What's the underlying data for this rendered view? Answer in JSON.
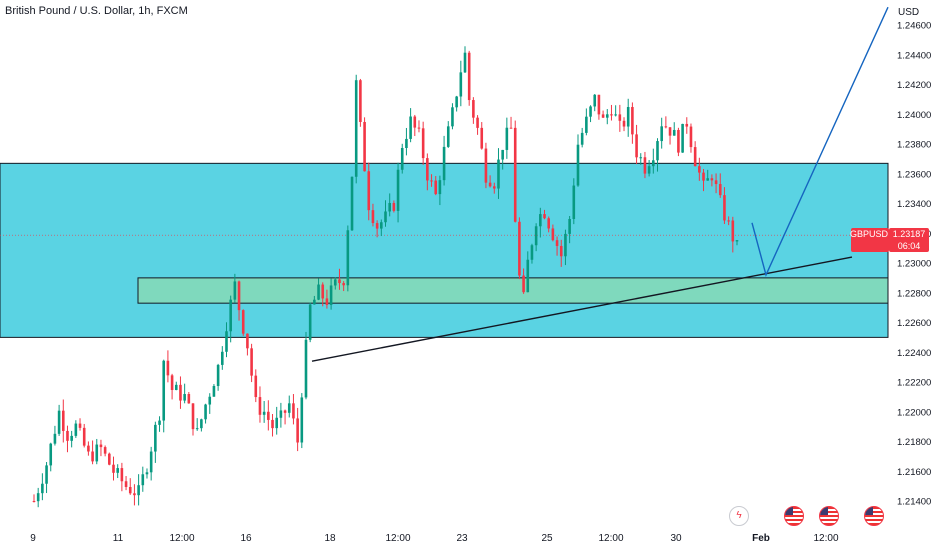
{
  "header": {
    "title": "British Pound / U.S. Dollar, 1h, FXCM",
    "axis_unit": "USD"
  },
  "price_tag": {
    "symbol": "GBPUSD",
    "price": "1.23187",
    "countdown": "06:04",
    "color": "#f23645"
  },
  "events": [
    {
      "icon": "lightning-icon",
      "kind": "economic-event"
    },
    {
      "icon": "us-flag-icon",
      "kind": "us-event"
    },
    {
      "icon": "us-flag-icon",
      "kind": "us-event"
    },
    {
      "icon": "us-flag-icon",
      "kind": "us-event"
    }
  ],
  "chart_data": {
    "type": "candlestick",
    "title": "British Pound / U.S. Dollar, 1h, FXCM",
    "y_range": [
      1.213,
      1.248
    ],
    "y_ticks": [
      "1.24600",
      "1.24400",
      "1.24200",
      "1.24000",
      "1.23800",
      "1.23600",
      "1.23400",
      "1.23200",
      "1.23000",
      "1.22800",
      "1.22600",
      "1.22400",
      "1.22200",
      "1.22000",
      "1.21800",
      "1.21600",
      "1.21400"
    ],
    "x_ticks": [
      "9",
      "11",
      "12:00",
      "16",
      "18",
      "12:00",
      "23",
      "25",
      "12:00",
      "30",
      "Feb",
      "12:00"
    ],
    "colors": {
      "up": "#089981",
      "down": "#f23645",
      "zone": "#00bcd4",
      "inner_zone": "#81c784",
      "line": "#131722",
      "projection": "#1565c0"
    },
    "zones": [
      {
        "name": "supply-demand-zone",
        "top": 1.2367,
        "bottom": 1.225
      },
      {
        "name": "support-zone",
        "top": 1.229,
        "bottom": 1.2273
      }
    ],
    "trendline": {
      "from": [
        "Jan 17",
        1.2234
      ],
      "to": [
        "Feb 1",
        1.2304
      ]
    },
    "projection": [
      [
        "Jan 31",
        1.2327
      ],
      [
        "Feb 1",
        1.2292
      ],
      [
        "Feb 2",
        1.2472
      ]
    ],
    "last_price": 1.23187,
    "anchors": [
      {
        "i": 0,
        "v": 1.214
      },
      {
        "i": 3,
        "v": 1.2165
      },
      {
        "i": 6,
        "v": 1.22
      },
      {
        "i": 8,
        "v": 1.2185
      },
      {
        "i": 10,
        "v": 1.219
      },
      {
        "i": 13,
        "v": 1.217
      },
      {
        "i": 16,
        "v": 1.2175
      },
      {
        "i": 19,
        "v": 1.216
      },
      {
        "i": 22,
        "v": 1.215
      },
      {
        "i": 25,
        "v": 1.2145
      },
      {
        "i": 27,
        "v": 1.2165
      },
      {
        "i": 30,
        "v": 1.22
      },
      {
        "i": 31,
        "v": 1.2235
      },
      {
        "i": 33,
        "v": 1.2215
      },
      {
        "i": 36,
        "v": 1.221
      },
      {
        "i": 39,
        "v": 1.2185
      },
      {
        "i": 41,
        "v": 1.2205
      },
      {
        "i": 44,
        "v": 1.223
      },
      {
        "i": 46,
        "v": 1.226
      },
      {
        "i": 48,
        "v": 1.2285
      },
      {
        "i": 49,
        "v": 1.227
      },
      {
        "i": 51,
        "v": 1.2245
      },
      {
        "i": 53,
        "v": 1.2205
      },
      {
        "i": 55,
        "v": 1.22
      },
      {
        "i": 57,
        "v": 1.219
      },
      {
        "i": 59,
        "v": 1.2195
      },
      {
        "i": 61,
        "v": 1.2205
      },
      {
        "i": 63,
        "v": 1.218
      },
      {
        "i": 64,
        "v": 1.2215
      },
      {
        "i": 66,
        "v": 1.227
      },
      {
        "i": 68,
        "v": 1.228
      },
      {
        "i": 70,
        "v": 1.2275
      },
      {
        "i": 72,
        "v": 1.2285
      },
      {
        "i": 74,
        "v": 1.229
      },
      {
        "i": 76,
        "v": 1.236
      },
      {
        "i": 77,
        "v": 1.242
      },
      {
        "i": 78,
        "v": 1.239
      },
      {
        "i": 80,
        "v": 1.234
      },
      {
        "i": 82,
        "v": 1.2325
      },
      {
        "i": 84,
        "v": 1.233
      },
      {
        "i": 86,
        "v": 1.234
      },
      {
        "i": 88,
        "v": 1.238
      },
      {
        "i": 90,
        "v": 1.2395
      },
      {
        "i": 92,
        "v": 1.2385
      },
      {
        "i": 94,
        "v": 1.236
      },
      {
        "i": 96,
        "v": 1.2345
      },
      {
        "i": 98,
        "v": 1.2375
      },
      {
        "i": 100,
        "v": 1.24
      },
      {
        "i": 102,
        "v": 1.243
      },
      {
        "i": 103,
        "v": 1.244
      },
      {
        "i": 104,
        "v": 1.241
      },
      {
        "i": 106,
        "v": 1.239
      },
      {
        "i": 108,
        "v": 1.236
      },
      {
        "i": 110,
        "v": 1.2355
      },
      {
        "i": 112,
        "v": 1.238
      },
      {
        "i": 114,
        "v": 1.239
      },
      {
        "i": 115,
        "v": 1.233
      },
      {
        "i": 116,
        "v": 1.229
      },
      {
        "i": 117,
        "v": 1.2275
      },
      {
        "i": 118,
        "v": 1.23
      },
      {
        "i": 120,
        "v": 1.233
      },
      {
        "i": 122,
        "v": 1.2335
      },
      {
        "i": 124,
        "v": 1.232
      },
      {
        "i": 126,
        "v": 1.2305
      },
      {
        "i": 128,
        "v": 1.233
      },
      {
        "i": 130,
        "v": 1.238
      },
      {
        "i": 132,
        "v": 1.2395
      },
      {
        "i": 134,
        "v": 1.241
      },
      {
        "i": 136,
        "v": 1.2395
      },
      {
        "i": 138,
        "v": 1.2405
      },
      {
        "i": 140,
        "v": 1.239
      },
      {
        "i": 142,
        "v": 1.24
      },
      {
        "i": 144,
        "v": 1.2375
      },
      {
        "i": 146,
        "v": 1.2365
      },
      {
        "i": 148,
        "v": 1.2375
      },
      {
        "i": 150,
        "v": 1.2395
      },
      {
        "i": 152,
        "v": 1.239
      },
      {
        "i": 154,
        "v": 1.238
      },
      {
        "i": 156,
        "v": 1.2395
      },
      {
        "i": 158,
        "v": 1.237
      },
      {
        "i": 160,
        "v": 1.235
      },
      {
        "i": 162,
        "v": 1.236
      },
      {
        "i": 164,
        "v": 1.234
      },
      {
        "i": 166,
        "v": 1.2325
      },
      {
        "i": 168,
        "v": 1.231
      }
    ]
  }
}
